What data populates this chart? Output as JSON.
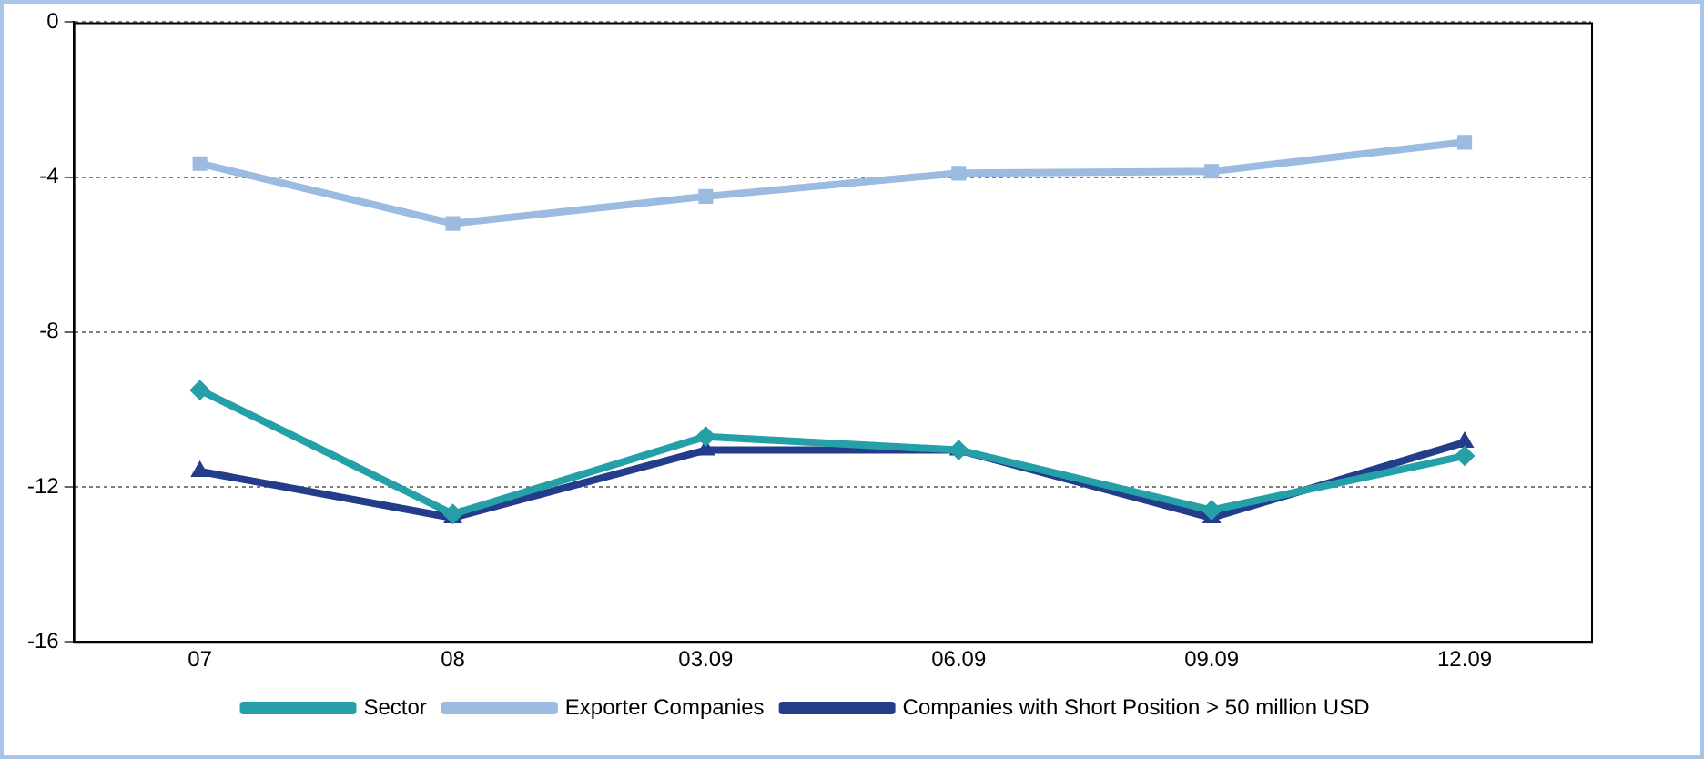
{
  "chart_data": {
    "type": "line",
    "categories": [
      "07",
      "08",
      "03.09",
      "06.09",
      "09.09",
      "12.09"
    ],
    "series": [
      {
        "name": "Sector",
        "color": "#26a0a8",
        "marker": "diamond",
        "values": [
          -9.5,
          -12.7,
          -10.7,
          -11.05,
          -12.6,
          -11.2
        ]
      },
      {
        "name": "Exporter Companies",
        "color": "#9bbbe0",
        "marker": "square",
        "values": [
          -3.65,
          -5.2,
          -4.5,
          -3.9,
          -3.85,
          -3.1
        ]
      },
      {
        "name": "Companies with Short Position > 50 million USD",
        "color": "#233d8a",
        "marker": "triangle",
        "values": [
          -11.6,
          -12.8,
          -11.05,
          -11.05,
          -12.8,
          -10.85
        ]
      }
    ],
    "ylim": [
      -16,
      0
    ],
    "yticks": [
      -16,
      -12,
      -8,
      -4,
      0
    ],
    "grid": "y",
    "legend": "bottom",
    "line_style": "solid"
  }
}
